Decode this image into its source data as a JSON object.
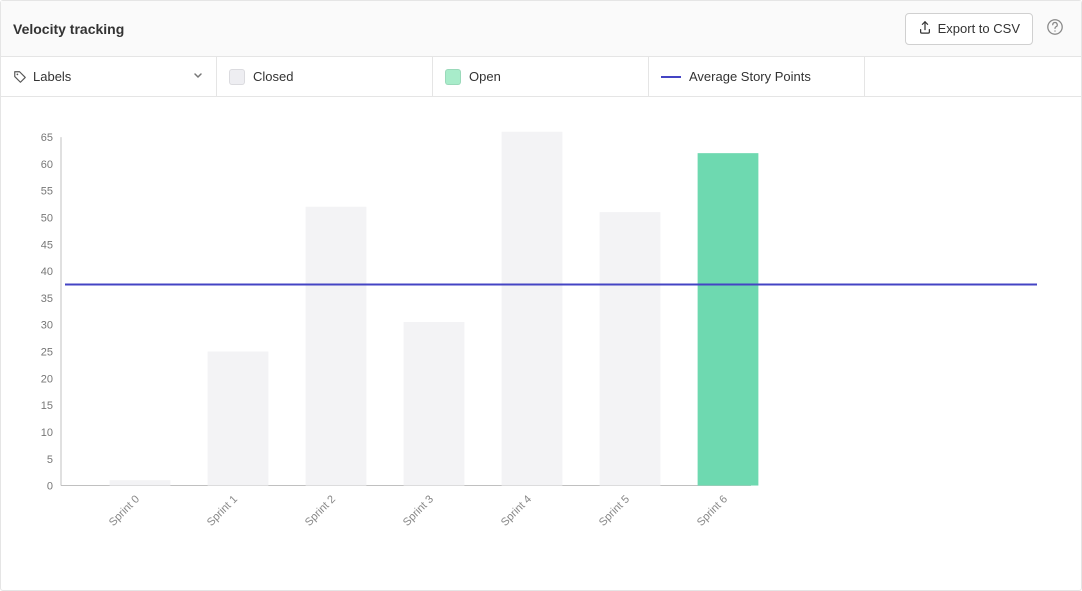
{
  "header": {
    "title": "Velocity tracking",
    "export_label": "Export to CSV"
  },
  "filters": {
    "labels_dropdown": "Labels",
    "legend_closed": "Closed",
    "legend_open": "Open",
    "legend_avg": "Average Story Points"
  },
  "chart": {
    "type": "bar",
    "categories": [
      "Sprint 0",
      "Sprint 1",
      "Sprint 2",
      "Sprint 3",
      "Sprint 4",
      "Sprint 5",
      "Sprint 6"
    ],
    "series": [
      {
        "name": "Closed",
        "status": "closed",
        "values": [
          1,
          25,
          52,
          30.5,
          66,
          51,
          0
        ],
        "color": "#f3f3f5"
      },
      {
        "name": "Open",
        "status": "open",
        "values": [
          0,
          0,
          0,
          0,
          0,
          0,
          62
        ],
        "color": "#6ed9b0"
      }
    ],
    "average_line": {
      "value": 37.5,
      "color": "#4444c4",
      "width": 2
    },
    "ylim": [
      0,
      65
    ],
    "ytick_step": 5,
    "yticks": [
      0,
      5,
      10,
      15,
      20,
      25,
      30,
      35,
      40,
      45,
      50,
      55,
      60,
      65
    ],
    "bar_width_ratio": 0.62,
    "axis_color": "#c0c0c0",
    "tick_font_color": "#777777",
    "tick_font_size": 11,
    "xlabel_rotation": -45,
    "background_color": "#ffffff",
    "swatch_closed_color": "#eeeef2",
    "swatch_open_color": "#a8ecca"
  }
}
